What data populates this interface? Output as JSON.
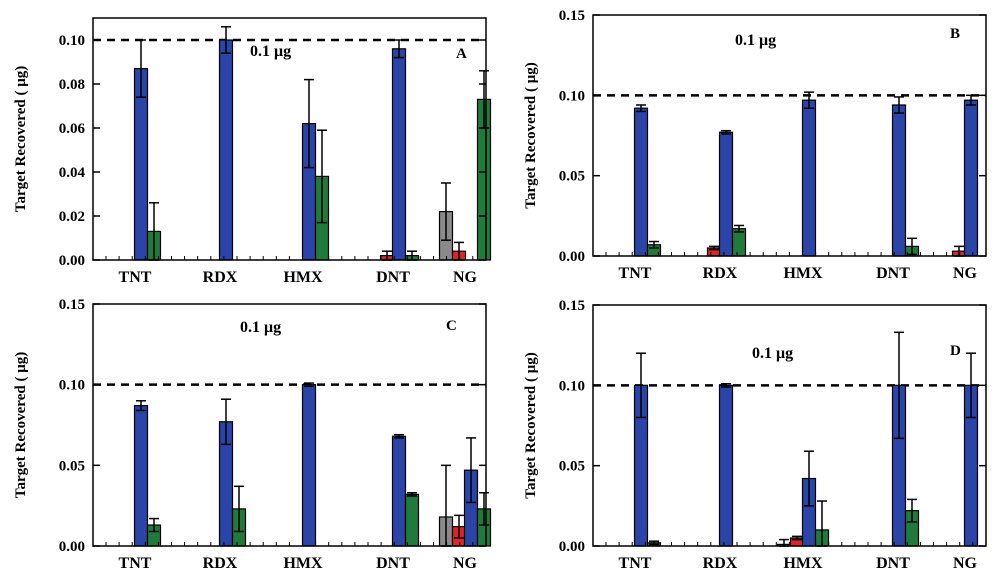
{
  "colors": {
    "gray": "#8a8a8a",
    "red": "#e02424",
    "blue": "#2b44a8",
    "green": "#1f7a3c",
    "reference_line": "#000000"
  },
  "chart_data": [
    {
      "panel": "A",
      "type": "bar",
      "ylabel": "Target Recovered ( μg)",
      "ylim": [
        0,
        0.11
      ],
      "yticks": [
        "0.00",
        "0.02",
        "0.04",
        "0.06",
        "0.08",
        "0.10"
      ],
      "reference_line": 0.1,
      "reference_label": "0.1 μg",
      "categories": [
        "TNT",
        "RDX",
        "HMX",
        "DNT",
        "NG"
      ],
      "series": [
        {
          "color": "gray",
          "values": [
            null,
            null,
            null,
            null,
            0.022
          ],
          "errors": [
            null,
            null,
            null,
            null,
            0.013
          ]
        },
        {
          "color": "red",
          "values": [
            null,
            null,
            null,
            0.002,
            0.004
          ],
          "errors": [
            null,
            null,
            null,
            0.002,
            0.004
          ]
        },
        {
          "color": "blue",
          "values": [
            0.087,
            0.1,
            0.062,
            0.096,
            null
          ],
          "errors": [
            0.013,
            0.006,
            0.02,
            0.004,
            null
          ]
        },
        {
          "color": "green",
          "values": [
            0.013,
            null,
            0.038,
            0.002,
            0.073
          ],
          "errors": [
            0.013,
            null,
            0.021,
            0.002,
            0.013
          ]
        }
      ]
    },
    {
      "panel": "B",
      "type": "bar",
      "ylabel": "Target Recovered ( μg)",
      "ylim": [
        0,
        0.15
      ],
      "yticks": [
        "0.00",
        "0.05",
        "0.10",
        "0.15"
      ],
      "reference_line": 0.1,
      "reference_label": "0.1 μg",
      "categories": [
        "TNT",
        "RDX",
        "HMX",
        "DNT",
        "NG"
      ],
      "series": [
        {
          "color": "gray",
          "values": [
            null,
            null,
            null,
            null,
            null
          ],
          "errors": [
            null,
            null,
            null,
            null,
            null
          ]
        },
        {
          "color": "red",
          "values": [
            null,
            0.005,
            null,
            null,
            0.003
          ],
          "errors": [
            null,
            0.001,
            null,
            null,
            0.003
          ]
        },
        {
          "color": "blue",
          "values": [
            0.092,
            0.077,
            0.097,
            0.094,
            0.097
          ],
          "errors": [
            0.002,
            0.001,
            0.005,
            0.005,
            0.003
          ]
        },
        {
          "color": "green",
          "values": [
            0.007,
            0.017,
            null,
            0.006,
            null
          ],
          "errors": [
            0.002,
            0.002,
            null,
            0.005,
            null
          ]
        }
      ]
    },
    {
      "panel": "C",
      "type": "bar",
      "ylabel": "Target Recovered ( μg)",
      "ylim": [
        0,
        0.15
      ],
      "yticks": [
        "0.00",
        "0.05",
        "0.10",
        "0.15"
      ],
      "reference_line": 0.1,
      "reference_label": "0.1 μg",
      "categories": [
        "TNT",
        "RDX",
        "HMX",
        "DNT",
        "NG"
      ],
      "series": [
        {
          "color": "gray",
          "values": [
            null,
            null,
            null,
            null,
            0.018
          ],
          "errors": [
            null,
            null,
            null,
            null,
            0.032
          ]
        },
        {
          "color": "red",
          "values": [
            null,
            null,
            null,
            null,
            0.012
          ],
          "errors": [
            null,
            null,
            null,
            null,
            0.007
          ]
        },
        {
          "color": "blue",
          "values": [
            0.087,
            0.077,
            0.1,
            0.068,
            0.047
          ],
          "errors": [
            0.003,
            0.014,
            0.001,
            0.001,
            0.02
          ]
        },
        {
          "color": "green",
          "values": [
            0.013,
            0.023,
            null,
            0.032,
            0.023
          ],
          "errors": [
            0.004,
            0.014,
            null,
            0.001,
            0.01
          ]
        }
      ]
    },
    {
      "panel": "D",
      "type": "bar",
      "ylabel": "Target Recovered (   μg)",
      "ylim": [
        0,
        0.15
      ],
      "yticks": [
        "0.00",
        "0.05",
        "0.10",
        "0.15"
      ],
      "reference_line": 0.1,
      "reference_label": "0.1 μg",
      "categories": [
        "TNT",
        "RDX",
        "HMX",
        "DNT",
        "NG"
      ],
      "series": [
        {
          "color": "gray",
          "values": [
            null,
            null,
            0.001,
            null,
            null
          ],
          "errors": [
            null,
            null,
            0.003,
            null,
            null
          ]
        },
        {
          "color": "red",
          "values": [
            null,
            null,
            0.005,
            null,
            null
          ],
          "errors": [
            null,
            null,
            0.001,
            null,
            null
          ]
        },
        {
          "color": "blue",
          "values": [
            0.1,
            0.1,
            0.042,
            0.1,
            0.1
          ],
          "errors": [
            0.02,
            0.001,
            0.017,
            0.033,
            0.02
          ]
        },
        {
          "color": "green",
          "values": [
            0.002,
            null,
            0.01,
            0.022,
            null
          ],
          "errors": [
            0.001,
            null,
            0.018,
            0.007,
            null
          ]
        }
      ]
    }
  ]
}
